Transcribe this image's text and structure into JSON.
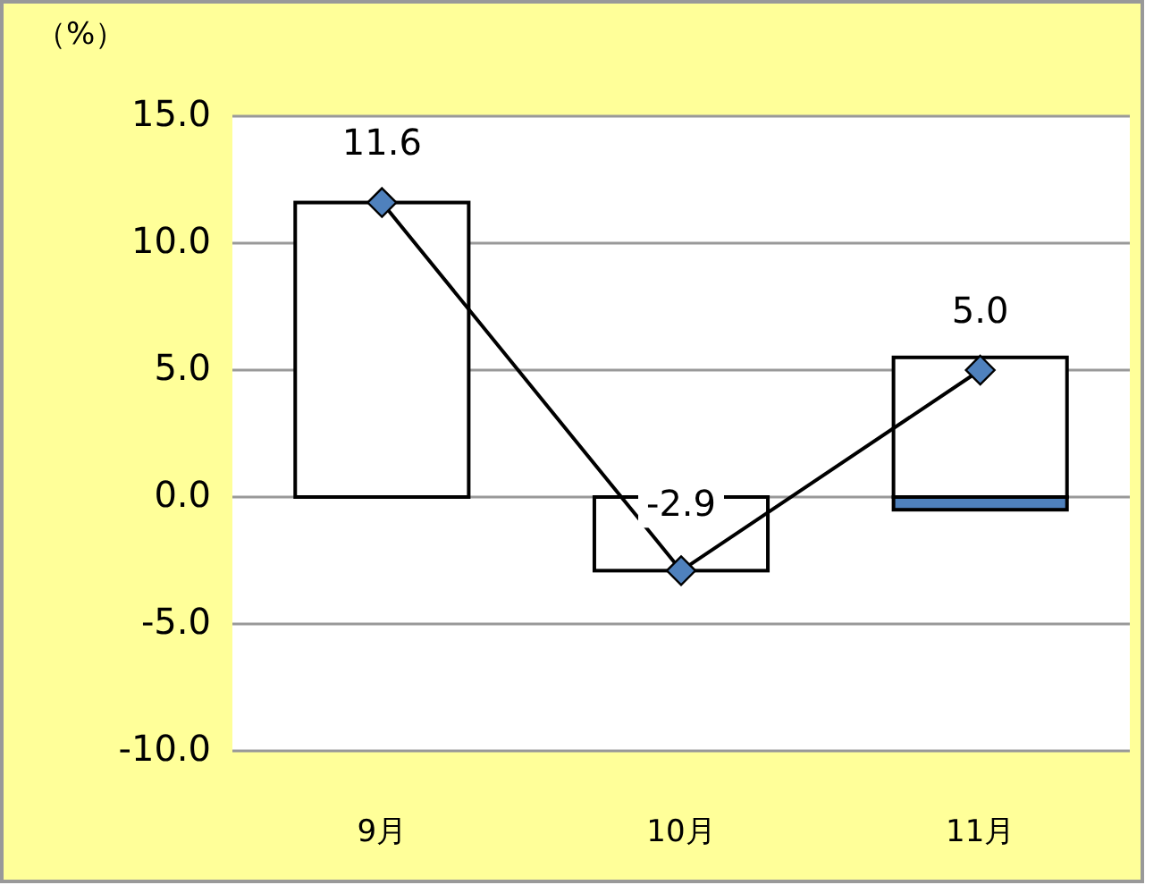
{
  "chart_data": {
    "type": "bar",
    "stacked": true,
    "ylabel": "（%）",
    "categories": [
      "9月",
      "10月",
      "11月"
    ],
    "series": [
      {
        "color": "#ffffff",
        "values": [
          11.6,
          -2.9,
          5.5
        ]
      },
      {
        "color": "#4f81bd",
        "values": [
          null,
          null,
          -0.5
        ]
      },
      {
        "type": "line",
        "color": "#000000",
        "values": [
          11.6,
          -2.9,
          5.0
        ],
        "value_labels": [
          "11.6",
          "-2.9",
          "5.0"
        ]
      }
    ],
    "ylim": [
      -10,
      15
    ],
    "yticks": [
      {
        "value": 15,
        "label": "15.0"
      },
      {
        "value": 10,
        "label": "10.0"
      },
      {
        "value": 5,
        "label": "5.0"
      },
      {
        "value": 0,
        "label": "0.0"
      },
      {
        "value": -5,
        "label": "-5.0"
      },
      {
        "value": -10,
        "label": "-10.0"
      }
    ],
    "grid": "y",
    "marker": "diamond"
  }
}
